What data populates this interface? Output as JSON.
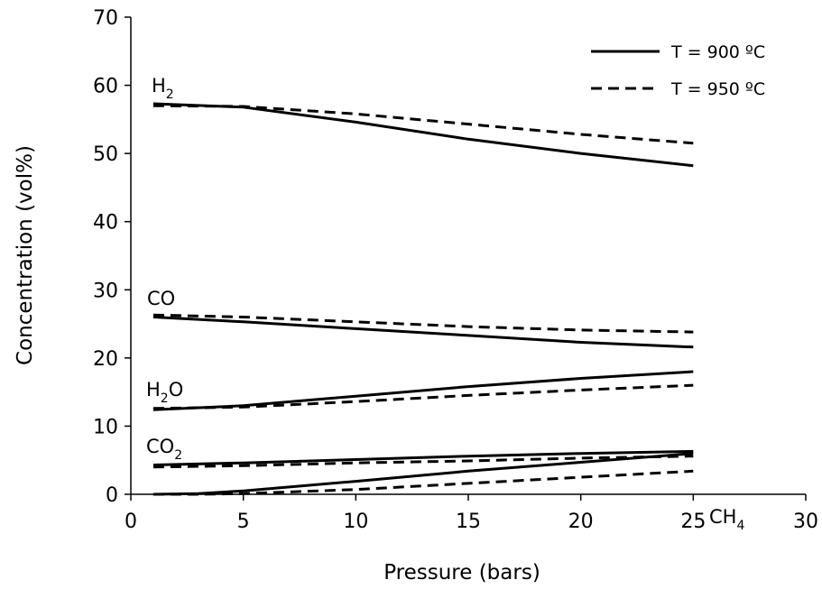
{
  "chart_data": {
    "type": "line",
    "title": "",
    "xlabel": "Pressure (bars)",
    "ylabel": "Concentration (vol%)",
    "xlim": [
      0,
      30
    ],
    "ylim": [
      0,
      70
    ],
    "xticks": [
      "0",
      "5",
      "10",
      "15",
      "20",
      "25",
      "30"
    ],
    "yticks": [
      "0",
      "10",
      "20",
      "30",
      "40",
      "50",
      "60",
      "70"
    ],
    "grid": false,
    "legend": {
      "placement": "top-right",
      "entries": [
        {
          "label": "T = 900 ºC",
          "style": "solid"
        },
        {
          "label": "T = 950 ºC",
          "style": "dashed"
        }
      ]
    },
    "annotations": [
      {
        "base": "H",
        "sub": "2",
        "after": ""
      },
      {
        "base": "CO",
        "sub": "",
        "after": ""
      },
      {
        "base": "H",
        "sub": "2",
        "after": "O"
      },
      {
        "base": "CO",
        "sub": "2",
        "after": ""
      },
      {
        "base": "CH",
        "sub": "4",
        "after": ""
      }
    ],
    "series": [
      {
        "species": "H2",
        "temperature": "900",
        "style": "solid",
        "x": [
          1,
          5,
          10,
          15,
          20,
          25
        ],
        "y": [
          57.3,
          56.8,
          54.6,
          52.1,
          50.0,
          48.2
        ]
      },
      {
        "species": "H2",
        "temperature": "950",
        "style": "dashed",
        "x": [
          1,
          5,
          10,
          15,
          20,
          25
        ],
        "y": [
          57.0,
          56.9,
          55.8,
          54.3,
          52.8,
          51.5
        ]
      },
      {
        "species": "CO",
        "temperature": "900",
        "style": "solid",
        "x": [
          1,
          5,
          10,
          15,
          20,
          25
        ],
        "y": [
          26.0,
          25.3,
          24.3,
          23.3,
          22.3,
          21.6
        ]
      },
      {
        "species": "CO",
        "temperature": "950",
        "style": "dashed",
        "x": [
          1,
          5,
          10,
          15,
          20,
          25
        ],
        "y": [
          26.3,
          26.0,
          25.3,
          24.6,
          24.1,
          23.8
        ]
      },
      {
        "species": "H2O",
        "temperature": "900",
        "style": "solid",
        "x": [
          1,
          5,
          10,
          15,
          20,
          25
        ],
        "y": [
          12.4,
          13.0,
          14.4,
          15.8,
          17.0,
          18.0
        ]
      },
      {
        "species": "H2O",
        "temperature": "950",
        "style": "dashed",
        "x": [
          1,
          5,
          10,
          15,
          20,
          25
        ],
        "y": [
          12.6,
          12.8,
          13.6,
          14.5,
          15.3,
          16.0
        ]
      },
      {
        "species": "CO2",
        "temperature": "900",
        "style": "solid",
        "x": [
          1,
          5,
          10,
          15,
          20,
          25
        ],
        "y": [
          4.3,
          4.6,
          5.1,
          5.6,
          6.0,
          6.3
        ]
      },
      {
        "species": "CO2",
        "temperature": "950",
        "style": "dashed",
        "x": [
          1,
          5,
          10,
          15,
          20,
          25
        ],
        "y": [
          4.0,
          4.2,
          4.6,
          4.9,
          5.3,
          5.6
        ]
      },
      {
        "species": "CH4",
        "temperature": "900",
        "style": "solid",
        "x": [
          1,
          3,
          5,
          10,
          15,
          20,
          25
        ],
        "y": [
          0.0,
          0.1,
          0.5,
          1.9,
          3.4,
          4.7,
          6.0
        ]
      },
      {
        "species": "CH4",
        "temperature": "950",
        "style": "dashed",
        "x": [
          1,
          3,
          5,
          10,
          15,
          20,
          25
        ],
        "y": [
          0.0,
          0.0,
          0.1,
          0.7,
          1.6,
          2.5,
          3.4
        ]
      }
    ]
  }
}
